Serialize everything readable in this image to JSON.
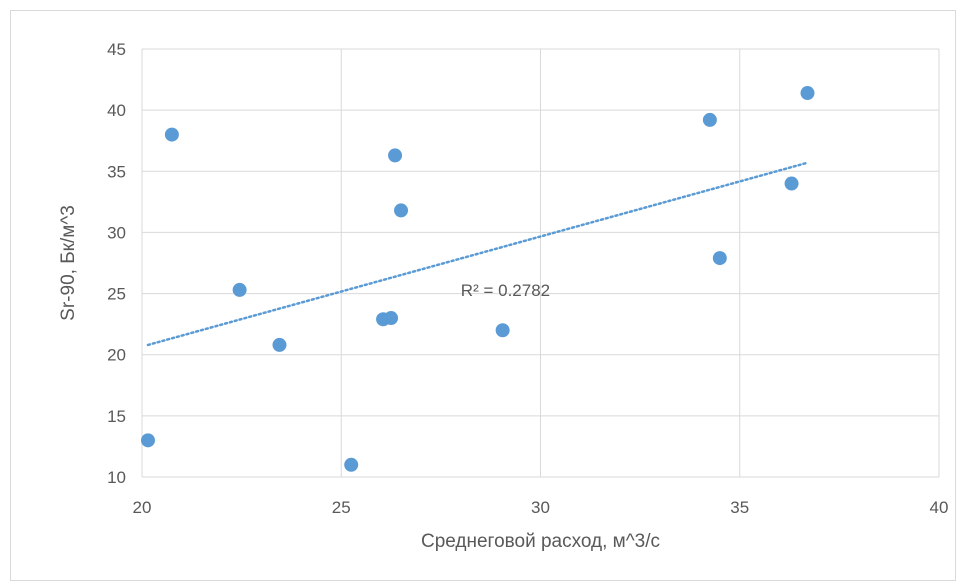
{
  "chart_data": {
    "type": "scatter",
    "title": "",
    "xlabel": "Среднеговой расход, м^3/с",
    "ylabel": "Sr-90, Бк/м^3",
    "xlim": [
      20,
      40
    ],
    "ylim": [
      10,
      45
    ],
    "x_ticks": [
      20,
      25,
      30,
      35,
      40
    ],
    "y_ticks": [
      10,
      15,
      20,
      25,
      30,
      35,
      40,
      45
    ],
    "grid": true,
    "legend": "none",
    "series": [
      {
        "color": "#5b9bd5",
        "points": [
          {
            "x": 20.15,
            "y": 13.0
          },
          {
            "x": 20.75,
            "y": 38.0
          },
          {
            "x": 22.45,
            "y": 25.3
          },
          {
            "x": 23.45,
            "y": 20.8
          },
          {
            "x": 25.25,
            "y": 11.0
          },
          {
            "x": 26.05,
            "y": 22.9
          },
          {
            "x": 26.25,
            "y": 23.0
          },
          {
            "x": 26.35,
            "y": 36.3
          },
          {
            "x": 26.5,
            "y": 31.8
          },
          {
            "x": 29.05,
            "y": 22.0
          },
          {
            "x": 34.25,
            "y": 39.2
          },
          {
            "x": 34.5,
            "y": 27.9
          },
          {
            "x": 36.3,
            "y": 34.0
          },
          {
            "x": 36.7,
            "y": 41.4
          }
        ]
      }
    ],
    "trendline": {
      "kind": "linear",
      "style": "dotted",
      "color": "#5b9bd5",
      "start": {
        "x": 20.15,
        "y": 20.8
      },
      "end": {
        "x": 36.7,
        "y": 35.7
      },
      "r2_label": "R² = 0.2782"
    }
  }
}
